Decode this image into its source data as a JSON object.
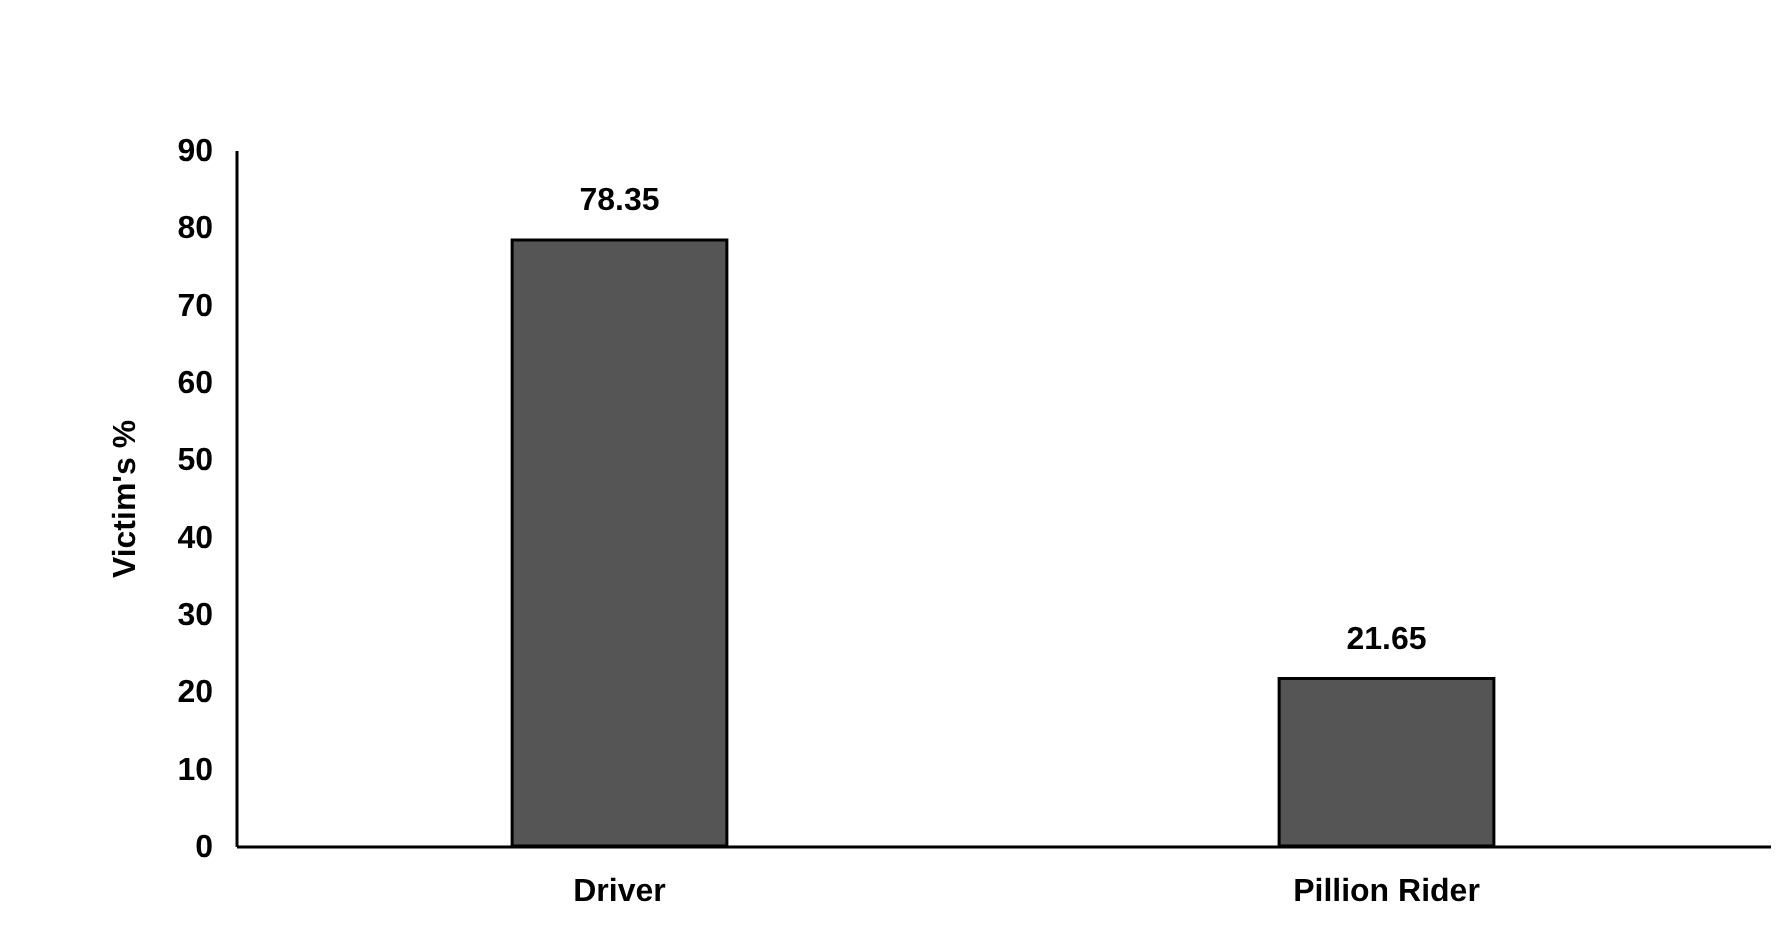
{
  "chart_data": {
    "type": "bar",
    "ylabel": "Victim's  %",
    "categories": [
      "Driver",
      "Pillion Rider"
    ],
    "values": [
      78.35,
      21.65
    ],
    "color": "#555555",
    "ylim": [
      0,
      90
    ],
    "yticks": [
      0,
      10,
      20,
      30,
      40,
      50,
      60,
      70,
      80,
      90
    ],
    "grid": false,
    "data_labels": true
  }
}
